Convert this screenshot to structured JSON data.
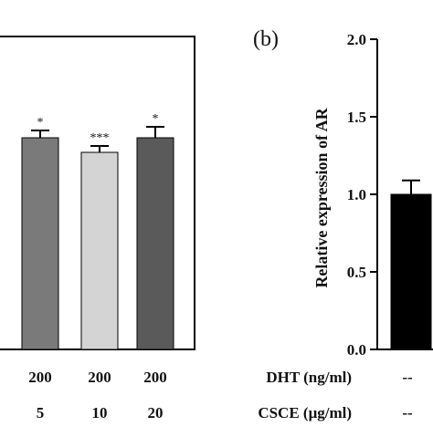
{
  "chart_data": [
    {
      "panel": "a",
      "type": "bar",
      "categories": [
        "",
        "",
        ""
      ],
      "values": [
        null,
        null,
        null
      ],
      "errors": [
        null,
        null,
        null
      ],
      "significance": [
        "*",
        "***",
        "*"
      ],
      "bar_colors": [
        "#7a7a7a",
        "#d4d4d4",
        "#5a5a5a"
      ],
      "x_rows": [
        {
          "label": "",
          "values": [
            "200",
            "200",
            "200"
          ]
        },
        {
          "label": "",
          "values": [
            "5",
            "10",
            "20"
          ]
        }
      ]
    },
    {
      "panel": "b",
      "panel_label": "(b)",
      "type": "bar",
      "categories": [
        "--"
      ],
      "values": [
        1.0
      ],
      "errors": [
        0.09
      ],
      "bar_colors": [
        "#000000"
      ],
      "ylabel": "Relative expression of AR",
      "ylim": [
        0.0,
        2.0
      ],
      "yticks": [
        "0.0",
        "0.5",
        "1.0",
        "1.5",
        "2.0"
      ],
      "x_rows": [
        {
          "label": "DHT (ng/ml)",
          "values": [
            "--"
          ]
        },
        {
          "label": "CSCE (μg/ml)",
          "values": [
            "--"
          ]
        }
      ]
    }
  ]
}
